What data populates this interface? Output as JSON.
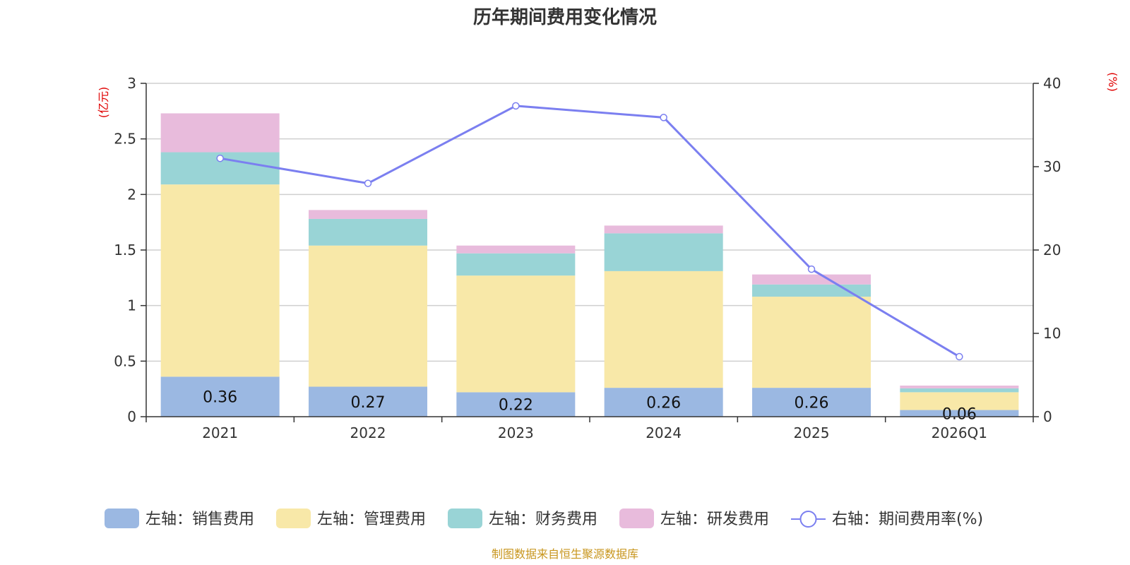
{
  "chart_data": {
    "type": "bar",
    "title": "历年期间费用变化情况",
    "categories": [
      "2021",
      "2022",
      "2023",
      "2024",
      "2025",
      "2026Q1"
    ],
    "left_axis": {
      "unit_label": "(亿元)",
      "ylim": [
        0,
        3
      ],
      "ticks": [
        "0",
        "0.5",
        "1",
        "1.5",
        "2",
        "2.5",
        "3"
      ]
    },
    "right_axis": {
      "unit_label": "(%)",
      "ylim": [
        0,
        40
      ],
      "ticks": [
        "0",
        "10",
        "20",
        "30",
        "40"
      ]
    },
    "series": [
      {
        "name": "左轴：销售费用",
        "color": "#9bb8e2",
        "values": [
          0.36,
          0.27,
          0.22,
          0.26,
          0.26,
          0.06
        ],
        "labels": [
          "0.36",
          "0.27",
          "0.22",
          "0.26",
          "0.26",
          "0.06"
        ]
      },
      {
        "name": "左轴：管理费用",
        "color": "#f8e8a8",
        "values": [
          1.73,
          1.27,
          1.05,
          1.05,
          0.82,
          0.16
        ]
      },
      {
        "name": "左轴：财务费用",
        "color": "#99d4d6",
        "values": [
          0.29,
          0.24,
          0.2,
          0.34,
          0.11,
          0.035
        ]
      },
      {
        "name": "左轴：研发费用",
        "color": "#e8bbdc",
        "values": [
          0.35,
          0.08,
          0.07,
          0.07,
          0.09,
          0.025
        ]
      }
    ],
    "line_series": {
      "name": "右轴：期间费用率(%)",
      "color": "#7b7ff0",
      "values": [
        31.0,
        28.0,
        37.3,
        35.9,
        17.7,
        7.2
      ]
    },
    "source": "制图数据来自恒生聚源数据库"
  }
}
